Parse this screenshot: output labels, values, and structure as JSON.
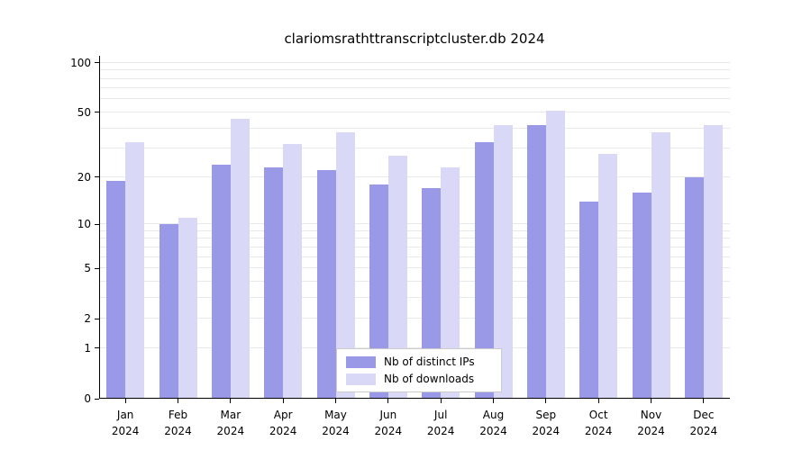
{
  "chart_data": {
    "type": "bar",
    "title": "clariomsrathttranscriptcluster.db 2024",
    "categories": [
      "Jan",
      "Feb",
      "Mar",
      "Apr",
      "May",
      "Jun",
      "Jul",
      "Aug",
      "Sep",
      "Oct",
      "Nov",
      "Dec"
    ],
    "year_label": "2024",
    "series": [
      {
        "name": "Nb of distinct IPs",
        "color": "#9999e8",
        "values": [
          19,
          10,
          24,
          23,
          22,
          18,
          17,
          33,
          42,
          14,
          16,
          20
        ]
      },
      {
        "name": "Nb of downloads",
        "color": "#d9d9f7",
        "values": [
          33,
          11,
          46,
          32,
          38,
          27,
          23,
          42,
          51,
          28,
          38,
          42
        ]
      }
    ],
    "yticks": [
      0,
      1,
      2,
      5,
      10,
      20,
      50,
      100
    ],
    "scale": "log1p",
    "ylim": [
      0,
      110
    ],
    "grid": true,
    "legend_position": "bottom-center",
    "colors": {
      "grid": "#e9e9e9",
      "axis": "#000000",
      "background": "#ffffff"
    }
  }
}
